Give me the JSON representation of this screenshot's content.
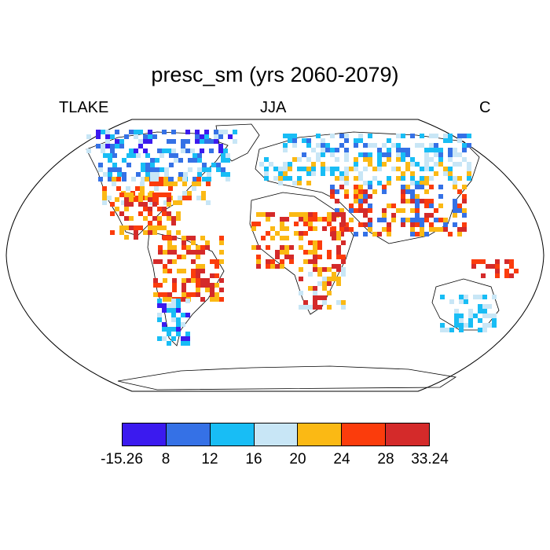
{
  "title": "presc_sm (yrs 2060-2079)",
  "subtitle_left": "TLAKE",
  "subtitle_center": "JJA",
  "subtitle_right": "C",
  "colorbar": {
    "colors": [
      "#3b1aef",
      "#3571e6",
      "#18bdf5",
      "#c8e6f6",
      "#fbb914",
      "#fb3c0c",
      "#d42a2a"
    ],
    "labels": [
      "-15.26",
      "8",
      "12",
      "16",
      "20",
      "24",
      "28",
      "33.24"
    ]
  }
}
